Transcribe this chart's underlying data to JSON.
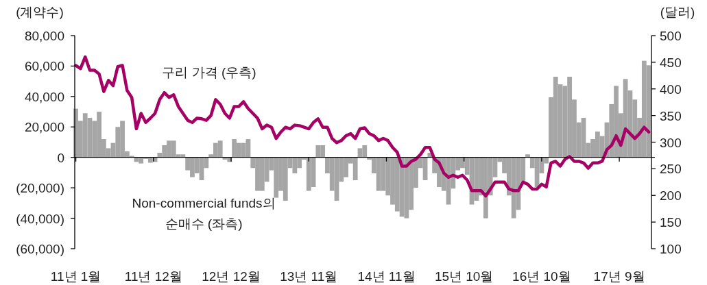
{
  "chart_data": {
    "type": "bar",
    "ylabel": "(계약수)",
    "y2label": "(달러)",
    "x": [
      "2011-01-04",
      "2011-01-25",
      "2011-02-15",
      "2011-03-08",
      "2011-03-29",
      "2011-04-19",
      "2011-05-10",
      "2011-05-31",
      "2011-06-21",
      "2011-07-12",
      "2011-08-02",
      "2011-08-23",
      "2011-09-13",
      "2011-10-04",
      "2011-10-25",
      "2011-11-15",
      "2011-12-06",
      "2011-12-27",
      "2012-01-17",
      "2012-02-07",
      "2012-02-28",
      "2012-03-20",
      "2012-04-10",
      "2012-05-01",
      "2012-05-22",
      "2012-06-12",
      "2012-07-03",
      "2012-07-24",
      "2012-08-14",
      "2012-09-04",
      "2012-09-25",
      "2012-10-16",
      "2012-11-06",
      "2012-11-27",
      "2012-12-18",
      "2013-01-08",
      "2013-01-29",
      "2013-02-19",
      "2013-03-12",
      "2013-04-02",
      "2013-04-23",
      "2013-05-14",
      "2013-06-04",
      "2013-06-25",
      "2013-07-16",
      "2013-08-06",
      "2013-08-27",
      "2013-09-17",
      "2013-10-08",
      "2013-10-29",
      "2013-11-19",
      "2013-12-10",
      "2013-12-31",
      "2014-01-21",
      "2014-02-11",
      "2014-03-04",
      "2014-03-25",
      "2014-04-15",
      "2014-05-06",
      "2014-05-27",
      "2014-06-17",
      "2014-07-08",
      "2014-07-29",
      "2014-08-19",
      "2014-09-09",
      "2014-09-30",
      "2014-10-21",
      "2014-11-11",
      "2014-12-02",
      "2014-12-23",
      "2015-01-13",
      "2015-02-03",
      "2015-02-24",
      "2015-03-17",
      "2015-04-07",
      "2015-04-28",
      "2015-05-19",
      "2015-06-09",
      "2015-06-30",
      "2015-07-21",
      "2015-08-11",
      "2015-09-01",
      "2015-09-22",
      "2015-10-13",
      "2015-11-03",
      "2015-11-24",
      "2015-12-15",
      "2016-01-05",
      "2016-01-26",
      "2016-02-16",
      "2016-03-08",
      "2016-03-29",
      "2016-04-19",
      "2016-05-10",
      "2016-05-31",
      "2016-06-21",
      "2016-07-12",
      "2016-08-02",
      "2016-08-23",
      "2016-09-13",
      "2016-10-04",
      "2016-10-25",
      "2016-11-15",
      "2016-12-06",
      "2016-12-27",
      "2017-01-17",
      "2017-02-07",
      "2017-02-28",
      "2017-03-21",
      "2017-04-11",
      "2017-05-02",
      "2017-05-23",
      "2017-06-13",
      "2017-07-04",
      "2017-07-25",
      "2017-08-15",
      "2017-09-05",
      "2017-09-26",
      "2017-10-17",
      "2017-11-07",
      "2017-11-28",
      "2017-12-19",
      "2018-01-09",
      "2018-01-30"
    ],
    "xlim": [
      "2010-12-30",
      "2018-02-11"
    ],
    "xticks": [
      {
        "value": "2011-01-04",
        "label": "11년 1월"
      },
      {
        "value": "2011-12-20",
        "label": "11년 12월"
      },
      {
        "value": "2012-12-04",
        "label": "12년 12월"
      },
      {
        "value": "2013-11-19",
        "label": "13년 11월"
      },
      {
        "value": "2014-11-04",
        "label": "14년 11월"
      },
      {
        "value": "2015-10-20",
        "label": "15년 10월"
      },
      {
        "value": "2016-10-04",
        "label": "16년 10월"
      },
      {
        "value": "2017-09-19",
        "label": "17년 9월"
      }
    ],
    "ylim": [
      -60000,
      80000
    ],
    "yticks": [
      {
        "value": -60000,
        "label": "(60,000)"
      },
      {
        "value": -40000,
        "label": "(40,000)"
      },
      {
        "value": -20000,
        "label": "(20,000)"
      },
      0,
      {
        "value": 20000,
        "label": "20,000"
      },
      {
        "value": 40000,
        "label": "40,000"
      },
      {
        "value": 60000,
        "label": "60,000"
      },
      {
        "value": 80000,
        "label": "80,000"
      }
    ],
    "y2lim": [
      100,
      500
    ],
    "y2ticks": [
      100,
      150,
      200,
      250,
      300,
      350,
      400,
      450,
      500
    ],
    "series": [
      {
        "name": "Non-commercial funds의 순매수 (좌측)",
        "type": "bar",
        "color": "#a6a6a6",
        "values": [
          32000,
          24000,
          29000,
          26000,
          24000,
          30000,
          12000,
          6000,
          9500,
          20000,
          24000,
          4000,
          1000,
          -3000,
          -4000,
          -1000,
          -3500,
          -3000,
          3000,
          8000,
          11000,
          11000,
          2000,
          2000,
          -8500,
          -13000,
          -10500,
          -15000,
          -7000,
          2000,
          9500,
          11000,
          -1500,
          -3000,
          12000,
          9500,
          9500,
          12000,
          -7000,
          -22000,
          -22000,
          -16000,
          -8500,
          -26500,
          -22000,
          -28500,
          -7000,
          -10500,
          -7000,
          -1500,
          -22000,
          -19500,
          8000,
          8000,
          -10500,
          -22000,
          -28500,
          -16000,
          -13000,
          -4000,
          -15000,
          6000,
          8000,
          -1500,
          -10500,
          -22000,
          -22000,
          -25000,
          -31000,
          -35500,
          -39000,
          -40000,
          -34500,
          -20000,
          -7000,
          -15000,
          3000,
          -10500,
          -19500,
          -22000,
          -31000,
          -20500,
          -8500,
          -7000,
          -11500,
          -31000,
          -28500,
          -25000,
          -40000,
          -25000,
          -13000,
          -3000,
          -10500,
          -25000,
          -40000,
          -34500,
          -16000,
          2000,
          -7000,
          -19500,
          -10500,
          -4000,
          39500,
          53000,
          48000,
          47000,
          53000,
          38000,
          23000,
          26000,
          9500,
          12000,
          17000,
          14000,
          23000,
          35000,
          47000,
          29000,
          51500,
          44000,
          38000,
          26000,
          63500,
          60500
        ]
      },
      {
        "name": "구리 가격 (우측)",
        "type": "line",
        "axis": "y2",
        "color": "#a50064",
        "values": [
          444,
          438,
          460,
          435,
          435,
          428,
          395,
          416,
          406,
          442,
          444,
          397,
          384,
          325,
          354,
          337,
          345,
          354,
          380,
          393,
          384,
          389,
          367,
          354,
          341,
          337,
          345,
          344,
          341,
          350,
          380,
          371,
          354,
          345,
          367,
          367,
          376,
          363,
          354,
          345,
          325,
          332,
          328,
          307,
          319,
          328,
          325,
          332,
          331,
          328,
          325,
          337,
          344,
          328,
          328,
          307,
          299,
          303,
          312,
          316,
          307,
          325,
          327,
          316,
          312,
          303,
          307,
          303,
          290,
          281,
          255,
          255,
          264,
          268,
          277,
          290,
          290,
          268,
          261,
          242,
          234,
          238,
          234,
          238,
          229,
          209,
          209,
          209,
          199,
          212,
          225,
          225,
          225,
          212,
          209,
          209,
          225,
          221,
          212,
          212,
          221,
          216,
          261,
          264,
          255,
          268,
          273,
          264,
          264,
          261,
          251,
          261,
          261,
          264,
          286,
          294,
          312,
          294,
          325,
          316,
          307,
          316,
          328,
          319
        ]
      }
    ]
  }
}
